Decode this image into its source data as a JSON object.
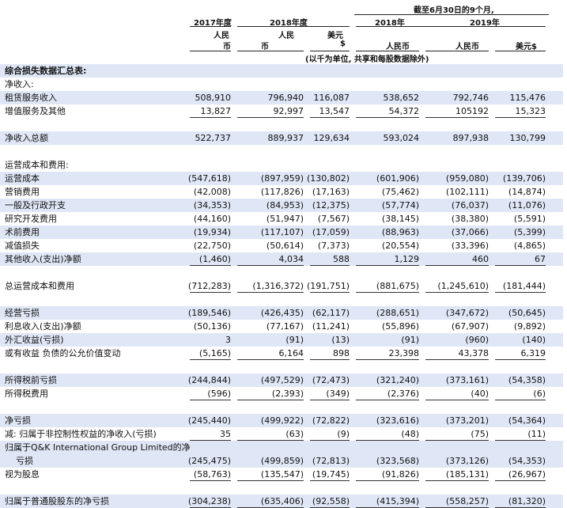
{
  "header": {
    "period_title": "截至6月30日的9个月,",
    "years": [
      "2017年度",
      "2018年度",
      "2018年",
      "2019年"
    ],
    "currencies": [
      [
        "人民",
        "币"
      ],
      [
        "人民",
        "币"
      ],
      [
        "美元",
        "$"
      ],
      [
        "人民币"
      ],
      [
        "人民币"
      ],
      [
        "美元$"
      ]
    ],
    "unit_note": "(以千为单位, 共享和每股数据除外)"
  },
  "rows": [
    {
      "label": "综合损失数据汇总表:",
      "values": [
        "",
        "",
        "",
        "",
        "",
        ""
      ],
      "bold": true,
      "shaded": true
    },
    {
      "label": "净收入:",
      "values": [
        "",
        "",
        "",
        "",
        "",
        ""
      ]
    },
    {
      "label": "租赁服务收入",
      "values": [
        "508,910",
        "796,940",
        "116,087",
        "538,652",
        "792,746",
        "115,476"
      ],
      "shaded": true
    },
    {
      "label": "增值服务及其他",
      "values": [
        "13,827",
        "92,997",
        "13,547",
        "54,372",
        "105192",
        "15,323"
      ],
      "underline": true
    },
    {
      "label": "",
      "values": [
        "",
        "",
        "",
        "",
        "",
        ""
      ]
    },
    {
      "label": "净收入总额",
      "values": [
        "522,737",
        "889,937",
        "129,634",
        "593,024",
        "897,938",
        "130,799"
      ],
      "shaded": true
    },
    {
      "label": "",
      "values": [
        "",
        "",
        "",
        "",
        "",
        ""
      ]
    },
    {
      "label": "运营成本和费用:",
      "values": [
        "",
        "",
        "",
        "",
        "",
        ""
      ]
    },
    {
      "label": "运营成本",
      "values": [
        "(547,618)",
        "(897,959)",
        "(130,802)",
        "(601,906)",
        "(959,080)",
        "(139,706)"
      ],
      "shaded": true
    },
    {
      "label": "营销费用",
      "values": [
        "(42,008)",
        "(117,826)",
        "(17,163)",
        "(75,462)",
        "(102,111)",
        "(14,874)"
      ]
    },
    {
      "label": "一般及行政开支",
      "values": [
        "(34,353)",
        "(84,953)",
        "(12,375)",
        "(57,774)",
        "(76,037)",
        "(11,076)"
      ],
      "shaded": true
    },
    {
      "label": "研究开发费用",
      "values": [
        "(44,160)",
        "(51,947)",
        "(7,567)",
        "(38,145)",
        "(38,380)",
        "(5,591)"
      ]
    },
    {
      "label": "术前费用",
      "values": [
        "(19,934)",
        "(117,107)",
        "(17,059)",
        "(88,963)",
        "(37,066)",
        "(5,399)"
      ],
      "shaded": true
    },
    {
      "label": "减值损失",
      "values": [
        "(22,750)",
        "(50,614)",
        "(7,373)",
        "(20,554)",
        "(33,396)",
        "(4,865)"
      ]
    },
    {
      "label": "其他收入(支出)净额",
      "values": [
        "(1,460)",
        "4,034",
        "588",
        "1,129",
        "460",
        "67"
      ],
      "shaded": true,
      "underline": true
    },
    {
      "label": "",
      "values": [
        "",
        "",
        "",
        "",
        "",
        ""
      ]
    },
    {
      "label": "总运营成本和费用",
      "values": [
        "(712,283)",
        "(1,316,372)",
        "(191,751)",
        "(881,675)",
        "(1,245,610)",
        "(181,444)"
      ],
      "underline": true
    },
    {
      "label": "",
      "values": [
        "",
        "",
        "",
        "",
        "",
        ""
      ]
    },
    {
      "label": "经营亏损",
      "values": [
        "(189,546)",
        "(426,435)",
        "(62,117)",
        "(288,651)",
        "(347,672)",
        "(50,645)"
      ],
      "shaded": true
    },
    {
      "label": "利息收入(支出)净额",
      "values": [
        "(50,136)",
        "(77,167)",
        "(11,241)",
        "(55,896)",
        "(67,907)",
        "(9,892)"
      ]
    },
    {
      "label": "外汇收益(亏损)",
      "values": [
        "3",
        "(91)",
        "(13)",
        "(91)",
        "(960)",
        "(140)"
      ],
      "shaded": true
    },
    {
      "label": "或有收益 负债的公允价值变动",
      "values": [
        "(5,165)",
        "6,164",
        "898",
        "23,398",
        "43,378",
        "6,319"
      ],
      "underline": true
    },
    {
      "label": "",
      "values": [
        "",
        "",
        "",
        "",
        "",
        ""
      ]
    },
    {
      "label": "所得税前亏损",
      "values": [
        "(244,844)",
        "(497,529)",
        "(72,473)",
        "(321,240)",
        "(373,161)",
        "(54,358)"
      ],
      "shaded": true
    },
    {
      "label": "所得税费用",
      "values": [
        "(596)",
        "(2,393)",
        "(349)",
        "(2,376)",
        "(40)",
        "(6)"
      ],
      "underline": true
    },
    {
      "label": "",
      "values": [
        "",
        "",
        "",
        "",
        "",
        ""
      ]
    },
    {
      "label": "净亏损",
      "values": [
        "(245,440)",
        "(499,922)",
        "(72,822)",
        "(323,616)",
        "(373,201)",
        "(54,364)"
      ],
      "shaded": true
    },
    {
      "label": "减: 归属于非控制性权益的净收入(亏损)",
      "values": [
        "35",
        "(63)",
        "(9)",
        "(48)",
        "(75)",
        "(11)"
      ],
      "underline": true
    },
    {
      "label": "归属于Q&K International Group Limited的净",
      "values": [
        "",
        "",
        "",
        "",
        "",
        ""
      ],
      "shaded": true
    },
    {
      "label": "亏损",
      "values": [
        "(245,475)",
        "(499,859)",
        "(72,813)",
        "(323,568)",
        "(373,126)",
        "(54,353)"
      ],
      "indent": true,
      "shaded": true
    },
    {
      "label": "视为股息",
      "values": [
        "(58,763)",
        "(135,547)",
        "(19,745)",
        "(91,826)",
        "(185,131)",
        "(26,967)"
      ],
      "underline": true
    },
    {
      "label": "",
      "values": [
        "",
        "",
        "",
        "",
        "",
        ""
      ]
    },
    {
      "label": "归属于普通股股东的净亏损",
      "values": [
        "(304,238)",
        "(635,406)",
        "(92,558)",
        "(415,394)",
        "(558,257)",
        "(81,320)"
      ],
      "shaded": true,
      "underline": true
    }
  ]
}
